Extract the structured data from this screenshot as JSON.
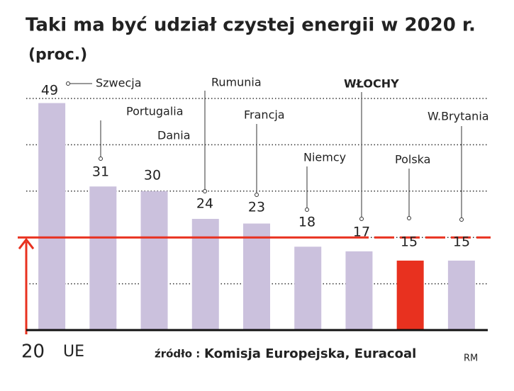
{
  "chart_data": {
    "type": "bar",
    "title": "Taki ma być udział czystej energii w 2020 r.",
    "subtitle": "(proc.)",
    "categories": [
      "Szwecja",
      "Portugalia",
      "Dania",
      "Rumunia",
      "Francja",
      "Niemcy",
      "WŁOCHY",
      "Polska",
      "W.Brytania"
    ],
    "values": [
      49,
      31,
      30,
      24,
      23,
      18,
      17,
      15,
      15
    ],
    "colors": [
      "#cbc1dd",
      "#cbc1dd",
      "#cbc1dd",
      "#cbc1dd",
      "#cbc1dd",
      "#cbc1dd",
      "#cbc1dd",
      "#e8311f",
      "#cbc1dd"
    ],
    "ylim": [
      0,
      50
    ],
    "yticks": [
      10,
      20,
      30,
      40,
      50
    ],
    "show_tick_labels": false,
    "grid": true,
    "reference": {
      "value": 20,
      "label": "UE",
      "color": "#e8311f"
    },
    "source_prefix": "źródło :",
    "source": "Komisja Europejska, Euracoal",
    "credit": "RM"
  }
}
